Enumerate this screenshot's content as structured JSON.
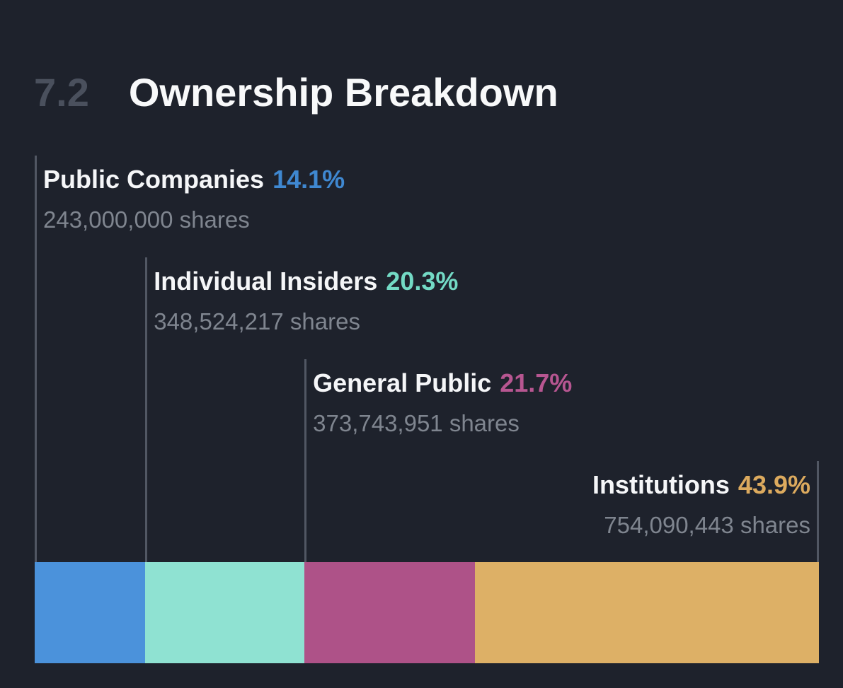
{
  "header": {
    "section_number": "7.2",
    "title": "Ownership Breakdown"
  },
  "colors": {
    "background": "#1e222c",
    "guide_line": "#515763",
    "section_number_text": "#4a505d",
    "title_text": "#f8f9fa",
    "category_name_text": "#f5f6f8",
    "shares_text": "#7f858f"
  },
  "categories": [
    {
      "name": "Public Companies",
      "pct": 14.1,
      "pct_label": "14.1%",
      "shares_label": "243,000,000 shares",
      "color": "#4b92db",
      "pct_color": "#3f88d1"
    },
    {
      "name": "Individual Insiders",
      "pct": 20.3,
      "pct_label": "20.3%",
      "shares_label": "348,524,217 shares",
      "color": "#8fe2d2",
      "pct_color": "#73dac5"
    },
    {
      "name": "General Public",
      "pct": 21.7,
      "pct_label": "21.7%",
      "shares_label": "373,743,951 shares",
      "color": "#ae5288",
      "pct_color": "#b75691"
    },
    {
      "name": "Institutions",
      "pct": 43.9,
      "pct_label": "43.9%",
      "shares_label": "754,090,443 shares",
      "color": "#ddb066",
      "pct_color": "#dcaa5e"
    }
  ],
  "chart_data": {
    "type": "bar",
    "subtype": "proportional-stacked-horizontal",
    "title": "7.2 Ownership Breakdown",
    "categories": [
      "Public Companies",
      "Individual Insiders",
      "General Public",
      "Institutions"
    ],
    "series": [
      {
        "name": "Ownership %",
        "values": [
          14.1,
          20.3,
          21.7,
          43.9
        ]
      },
      {
        "name": "Shares",
        "values": [
          243000000,
          348524217,
          373743951,
          754090443
        ]
      }
    ],
    "colors": [
      "#4b92db",
      "#8fe2d2",
      "#ae5288",
      "#ddb066"
    ],
    "xlabel": "",
    "ylabel": "",
    "xlim": [
      0,
      100
    ],
    "grid": false,
    "legend_position": "callout-labels-above-bar-with-leader-lines"
  }
}
